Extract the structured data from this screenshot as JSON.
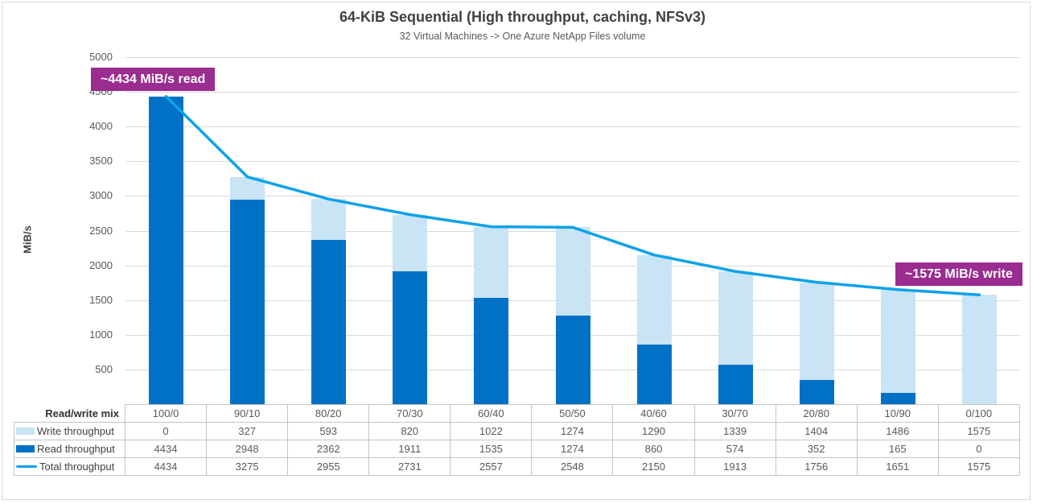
{
  "chart_data": {
    "type": "bar",
    "variant": "stacked-bars-with-total-line",
    "title": "64-KiB Sequential (High throughput, caching, NFSv3)",
    "subtitle": "32 Virtual Machines -> One Azure NetApp Files volume",
    "ylabel": "MiB/s",
    "ylim": [
      0,
      5000
    ],
    "ytick_step": 500,
    "ytick_labels": [
      "500",
      "1000",
      "1500",
      "2000",
      "2500",
      "3000",
      "3500",
      "4000",
      "4500",
      "5000"
    ],
    "grid": true,
    "legend_position": "table-rows-left",
    "row_header": "Read/write mix",
    "categories": [
      "100/0",
      "90/10",
      "80/20",
      "70/30",
      "60/40",
      "50/50",
      "40/60",
      "30/70",
      "20/80",
      "10/90",
      "0/100"
    ],
    "series": [
      {
        "name": "Write throughput",
        "kind": "bar",
        "stack": "top",
        "color": "#C8E4F5",
        "values": [
          0,
          327,
          593,
          820,
          1022,
          1274,
          1290,
          1339,
          1404,
          1486,
          1575
        ]
      },
      {
        "name": "Read throughput",
        "kind": "bar",
        "stack": "bottom",
        "color": "#0071C5",
        "values": [
          4434,
          2948,
          2362,
          1911,
          1535,
          1274,
          860,
          574,
          352,
          165,
          0
        ]
      },
      {
        "name": "Total throughput",
        "kind": "line",
        "color": "#0EA2E9",
        "values": [
          4434,
          3275,
          2955,
          2731,
          2557,
          2548,
          2150,
          1913,
          1756,
          1651,
          1575
        ]
      }
    ],
    "annotations": [
      {
        "text": "~4434 MiB/s read",
        "color": "#9B2C90"
      },
      {
        "text": "~1575 MiB/s write",
        "color": "#9B2C90"
      }
    ]
  }
}
